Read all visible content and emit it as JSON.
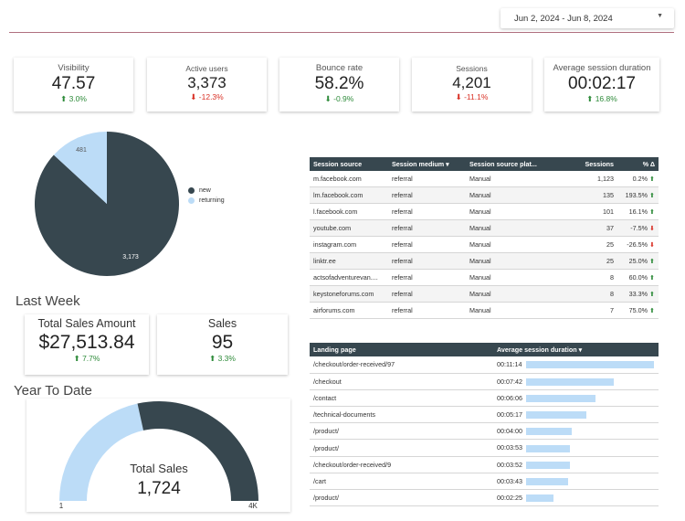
{
  "date_range": "Jun 2, 2024 - Jun 8, 2024",
  "kpis": [
    {
      "label": "Visibility",
      "value": "47.57",
      "delta": "3.0%",
      "dir": "up"
    },
    {
      "label": "Active users",
      "value": "3,373",
      "delta": "-12.3%",
      "dir": "down"
    },
    {
      "label": "Bounce rate",
      "value": "58.2%",
      "delta": "-0.9%",
      "dir": "up"
    },
    {
      "label": "Sessions",
      "value": "4,201",
      "delta": "-11.1%",
      "dir": "down"
    },
    {
      "label": "Average session duration",
      "value": "00:02:17",
      "delta": "16.8%",
      "dir": "up"
    }
  ],
  "colors": {
    "dark": "#37474f",
    "light": "#bcdcf7",
    "up": "#2e8b3a",
    "down": "#d93025"
  },
  "pie": {
    "segments": [
      {
        "label": "new",
        "value": 3173,
        "display": "3,173"
      },
      {
        "label": "returning",
        "value": 481,
        "display": "481"
      }
    ]
  },
  "last_week": {
    "title": "Last Week",
    "total_sales_amount": {
      "label": "Total Sales Amount",
      "value": "$27,513.84",
      "delta": "7.7%"
    },
    "sales": {
      "label": "Sales",
      "value": "95",
      "delta": "3.3%"
    }
  },
  "ytd": {
    "title": "Year To Date",
    "label": "Total Sales",
    "value": "1,724",
    "current": 1724,
    "min": 1,
    "max": 4000,
    "min_label": "1",
    "max_label": "4K"
  },
  "sessions_table": {
    "headers": [
      "Session source",
      "Session medium",
      "Session source plat...",
      "Sessions",
      "% Δ"
    ],
    "sort_icon": "▾",
    "rows": [
      {
        "source": "m.facebook.com",
        "medium": "referral",
        "platform": "Manual",
        "sessions": "1,123",
        "pct": "0.2%",
        "dir": "up"
      },
      {
        "source": "lm.facebook.com",
        "medium": "referral",
        "platform": "Manual",
        "sessions": "135",
        "pct": "193.5%",
        "dir": "up"
      },
      {
        "source": "l.facebook.com",
        "medium": "referral",
        "platform": "Manual",
        "sessions": "101",
        "pct": "16.1%",
        "dir": "up"
      },
      {
        "source": "youtube.com",
        "medium": "referral",
        "platform": "Manual",
        "sessions": "37",
        "pct": "-7.5%",
        "dir": "down"
      },
      {
        "source": "instagram.com",
        "medium": "referral",
        "platform": "Manual",
        "sessions": "25",
        "pct": "-26.5%",
        "dir": "down"
      },
      {
        "source": "linktr.ee",
        "medium": "referral",
        "platform": "Manual",
        "sessions": "25",
        "pct": "25.0%",
        "dir": "up"
      },
      {
        "source": "actsofadventurevan....",
        "medium": "referral",
        "platform": "Manual",
        "sessions": "8",
        "pct": "60.0%",
        "dir": "up"
      },
      {
        "source": "keystoneforums.com",
        "medium": "referral",
        "platform": "Manual",
        "sessions": "8",
        "pct": "33.3%",
        "dir": "up"
      },
      {
        "source": "airforums.com",
        "medium": "referral",
        "platform": "Manual",
        "sessions": "7",
        "pct": "75.0%",
        "dir": "up"
      }
    ]
  },
  "landing_table": {
    "headers": [
      "Landing page",
      "Average session duration"
    ],
    "sort_icon": "▾",
    "rows": [
      {
        "page": "/checkout/order-received/97",
        "duration": "00:11:14",
        "seconds": 674
      },
      {
        "page": "/checkout",
        "duration": "00:07:42",
        "seconds": 462
      },
      {
        "page": "/contact",
        "duration": "00:06:06",
        "seconds": 366
      },
      {
        "page": "/technical-documents",
        "duration": "00:05:17",
        "seconds": 317
      },
      {
        "page": "/product/",
        "duration": "00:04:00",
        "seconds": 240
      },
      {
        "page": "/product/",
        "duration": "00:03:53",
        "seconds": 233
      },
      {
        "page": "/checkout/order-received/9",
        "duration": "00:03:52",
        "seconds": 232
      },
      {
        "page": "/cart",
        "duration": "00:03:43",
        "seconds": 223
      },
      {
        "page": "/product/",
        "duration": "00:02:25",
        "seconds": 145
      }
    ]
  }
}
